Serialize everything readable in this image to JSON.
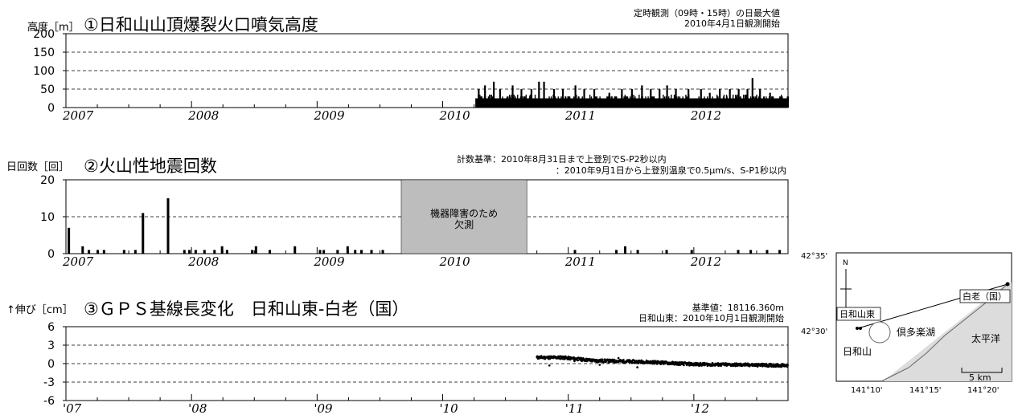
{
  "panel1": {
    "title": "①日和山山頂爆裂火口噴気高度",
    "ylabel": "高度［m］",
    "note_lines": [
      "定時観測（09時・15時）の日最大値",
      "2010年4月1日観測開始"
    ]
  },
  "panel2": {
    "title": "②火山性地震回数",
    "ylabel": "日回数［回］",
    "note_lines": [
      "計数基準：2010年8月31日まで上登別でS-P2秒以内",
      "：2010年9月1日から上登別温泉で0.5μm/s、S-P1秒以内"
    ],
    "gap_label_lines": [
      "機器障害のため",
      "欠測"
    ]
  },
  "panel3": {
    "title": "③ＧＰＳ基線長変化　日和山東-白老（国）",
    "ylabel": "↑伸び［cm］",
    "note_lines": [
      "基準値：18116.360m",
      "日和山東：2010年10月1日観測開始"
    ]
  },
  "map": {
    "north_label": "N",
    "lat_labels": [
      "42°35'",
      "42°30'"
    ],
    "lon_labels": [
      "141°10'",
      "141°15'",
      "141°20'"
    ],
    "place_labels": {
      "shiraoi": "白老（国）",
      "hiyoriyama_east": "日和山東",
      "hiyoriyama": "日和山",
      "lake": "倶多楽湖",
      "ocean": "太平洋"
    },
    "scale_label": "5 km"
  },
  "chart_data": [
    {
      "type": "bar",
      "title": "①日和山山頂爆裂火口噴気高度",
      "ylabel": "高度［m］",
      "xlim": [
        2007,
        2012.75
      ],
      "ylim": [
        0,
        200
      ],
      "yticks": [
        0,
        50,
        100,
        150,
        200
      ],
      "xtick_labels": [
        "2007",
        "2008",
        "2009",
        "2010",
        "2011",
        "2012"
      ],
      "grid": true,
      "observation_start": 2010.25,
      "typical_daily_height": 25,
      "peaks": [
        {
          "x": 2010.28,
          "y": 50
        },
        {
          "x": 2010.33,
          "y": 60
        },
        {
          "x": 2010.4,
          "y": 70
        },
        {
          "x": 2010.45,
          "y": 50
        },
        {
          "x": 2010.55,
          "y": 60
        },
        {
          "x": 2010.62,
          "y": 50
        },
        {
          "x": 2010.7,
          "y": 50
        },
        {
          "x": 2010.76,
          "y": 70
        },
        {
          "x": 2010.8,
          "y": 70
        },
        {
          "x": 2010.88,
          "y": 50
        },
        {
          "x": 2010.95,
          "y": 50
        },
        {
          "x": 2011.05,
          "y": 60
        },
        {
          "x": 2011.12,
          "y": 50
        },
        {
          "x": 2011.2,
          "y": 50
        },
        {
          "x": 2011.32,
          "y": 40
        },
        {
          "x": 2011.42,
          "y": 50
        },
        {
          "x": 2011.5,
          "y": 50
        },
        {
          "x": 2011.58,
          "y": 60
        },
        {
          "x": 2011.65,
          "y": 50
        },
        {
          "x": 2011.72,
          "y": 50
        },
        {
          "x": 2011.78,
          "y": 60
        },
        {
          "x": 2011.85,
          "y": 50
        },
        {
          "x": 2011.95,
          "y": 50
        },
        {
          "x": 2012.05,
          "y": 50
        },
        {
          "x": 2012.12,
          "y": 40
        },
        {
          "x": 2012.2,
          "y": 50
        },
        {
          "x": 2012.28,
          "y": 50
        },
        {
          "x": 2012.35,
          "y": 50
        },
        {
          "x": 2012.42,
          "y": 50
        },
        {
          "x": 2012.46,
          "y": 80
        },
        {
          "x": 2012.52,
          "y": 50
        },
        {
          "x": 2012.6,
          "y": 40
        },
        {
          "x": 2012.68,
          "y": 30
        }
      ]
    },
    {
      "type": "bar",
      "title": "②火山性地震回数",
      "ylabel": "日回数［回］",
      "xlim": [
        2007,
        2012.75
      ],
      "ylim": [
        0,
        20
      ],
      "yticks": [
        0,
        10,
        20
      ],
      "xtick_labels": [
        "2007",
        "2008",
        "2009",
        "2010",
        "2011",
        "2012"
      ],
      "grid": true,
      "missing_period": [
        2009.67,
        2010.67
      ],
      "bars": [
        {
          "x": 2007.02,
          "y": 7
        },
        {
          "x": 2007.13,
          "y": 2
        },
        {
          "x": 2007.18,
          "y": 1
        },
        {
          "x": 2007.25,
          "y": 1
        },
        {
          "x": 2007.3,
          "y": 1
        },
        {
          "x": 2007.46,
          "y": 1
        },
        {
          "x": 2007.55,
          "y": 1
        },
        {
          "x": 2007.61,
          "y": 11
        },
        {
          "x": 2007.81,
          "y": 15
        },
        {
          "x": 2007.94,
          "y": 1
        },
        {
          "x": 2007.98,
          "y": 1
        },
        {
          "x": 2008.03,
          "y": 1
        },
        {
          "x": 2008.1,
          "y": 1
        },
        {
          "x": 2008.18,
          "y": 1
        },
        {
          "x": 2008.24,
          "y": 2
        },
        {
          "x": 2008.28,
          "y": 1
        },
        {
          "x": 2008.48,
          "y": 1
        },
        {
          "x": 2008.51,
          "y": 2
        },
        {
          "x": 2008.62,
          "y": 1
        },
        {
          "x": 2008.82,
          "y": 2
        },
        {
          "x": 2009.02,
          "y": 1
        },
        {
          "x": 2009.05,
          "y": 1
        },
        {
          "x": 2009.16,
          "y": 1
        },
        {
          "x": 2009.24,
          "y": 2
        },
        {
          "x": 2009.3,
          "y": 1
        },
        {
          "x": 2009.35,
          "y": 1
        },
        {
          "x": 2009.43,
          "y": 1
        },
        {
          "x": 2009.52,
          "y": 1
        },
        {
          "x": 2011.05,
          "y": 1
        },
        {
          "x": 2011.38,
          "y": 1
        },
        {
          "x": 2011.45,
          "y": 2
        },
        {
          "x": 2011.55,
          "y": 1
        },
        {
          "x": 2011.78,
          "y": 1
        },
        {
          "x": 2011.98,
          "y": 1
        },
        {
          "x": 2012.35,
          "y": 1
        },
        {
          "x": 2012.45,
          "y": 1
        },
        {
          "x": 2012.58,
          "y": 1
        },
        {
          "x": 2012.68,
          "y": 1
        }
      ]
    },
    {
      "type": "scatter",
      "title": "③ＧＰＳ基線長変化　日和山東-白老（国）",
      "ylabel": "↑伸び［cm］",
      "xlim": [
        2007,
        2012.75
      ],
      "ylim": [
        -6,
        6
      ],
      "yticks": [
        6,
        3,
        0,
        -3,
        -6
      ],
      "xtick_labels": [
        "'07",
        "'08",
        "'09",
        "'10",
        "'11",
        "'12"
      ],
      "grid": true,
      "observation_start": 2010.75,
      "trend": [
        [
          2010.75,
          1.0
        ],
        [
          2010.95,
          1.0
        ],
        [
          2011.2,
          0.5
        ],
        [
          2011.6,
          0.3
        ],
        [
          2012.0,
          -0.1
        ],
        [
          2012.4,
          -0.2
        ],
        [
          2012.75,
          -0.3
        ]
      ],
      "outliers": [
        [
          2010.85,
          -0.3
        ],
        [
          2011.05,
          0.4
        ],
        [
          2011.25,
          -0.2
        ],
        [
          2011.55,
          -0.6
        ],
        [
          2011.4,
          0.9
        ]
      ]
    }
  ]
}
